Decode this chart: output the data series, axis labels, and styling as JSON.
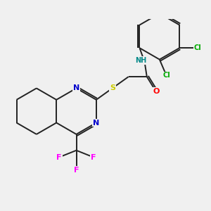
{
  "background_color": "#f0f0f0",
  "atom_colors": {
    "N": "#0000cc",
    "S": "#cccc00",
    "O": "#ff0000",
    "F": "#ff00ff",
    "Cl": "#00aa00",
    "C": "#000000",
    "H": "#008888"
  },
  "bond_color": "#222222",
  "bond_width": 1.4,
  "font_size": 8,
  "fig_width": 3.0,
  "fig_height": 3.0,
  "dpi": 100
}
